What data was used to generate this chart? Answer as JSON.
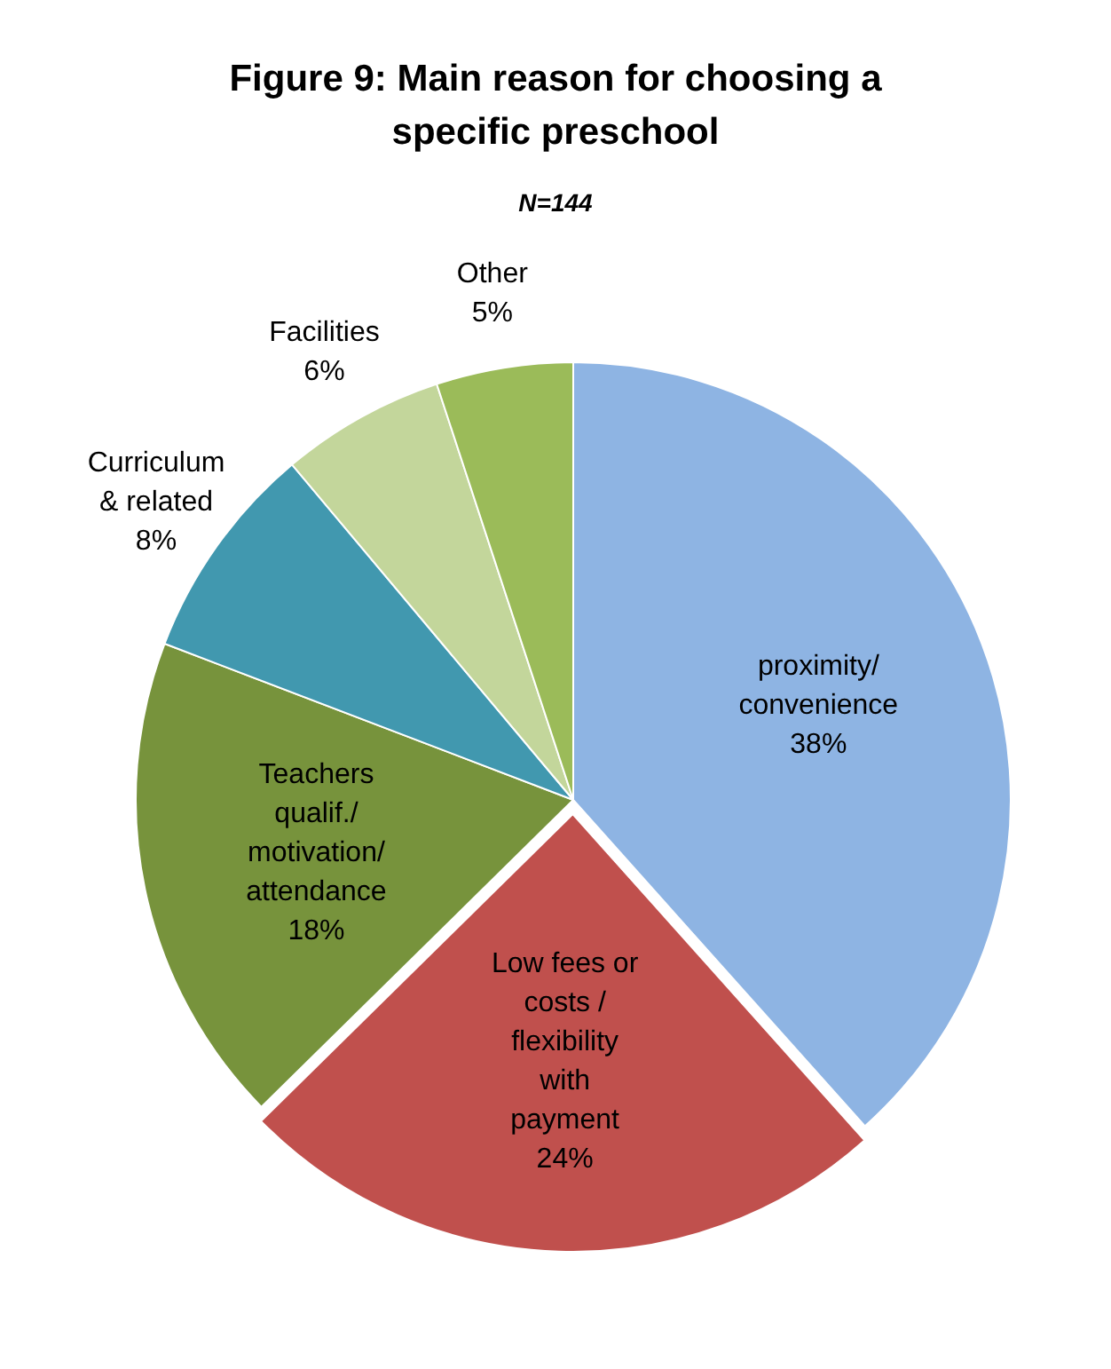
{
  "chart_data": {
    "type": "pie",
    "title": "Figure 9: Main reason for choosing a specific preschool",
    "subtitle": "N=144",
    "categories": [
      "proximity/ convenience",
      "Low fees or costs / flexibility with payment",
      "Teachers qualif./ motivation/ attendance",
      "Curriculum & related",
      "Facilities",
      "Other"
    ],
    "values": [
      38,
      24,
      18,
      8,
      6,
      5
    ],
    "colors": [
      "#8eb4e3",
      "#c0504d",
      "#77933c",
      "#4198af",
      "#c3d69b",
      "#9bbb59"
    ],
    "value_labels": [
      "38%",
      "24%",
      "18%",
      "8%",
      "6%",
      "5%"
    ],
    "legend": false
  }
}
